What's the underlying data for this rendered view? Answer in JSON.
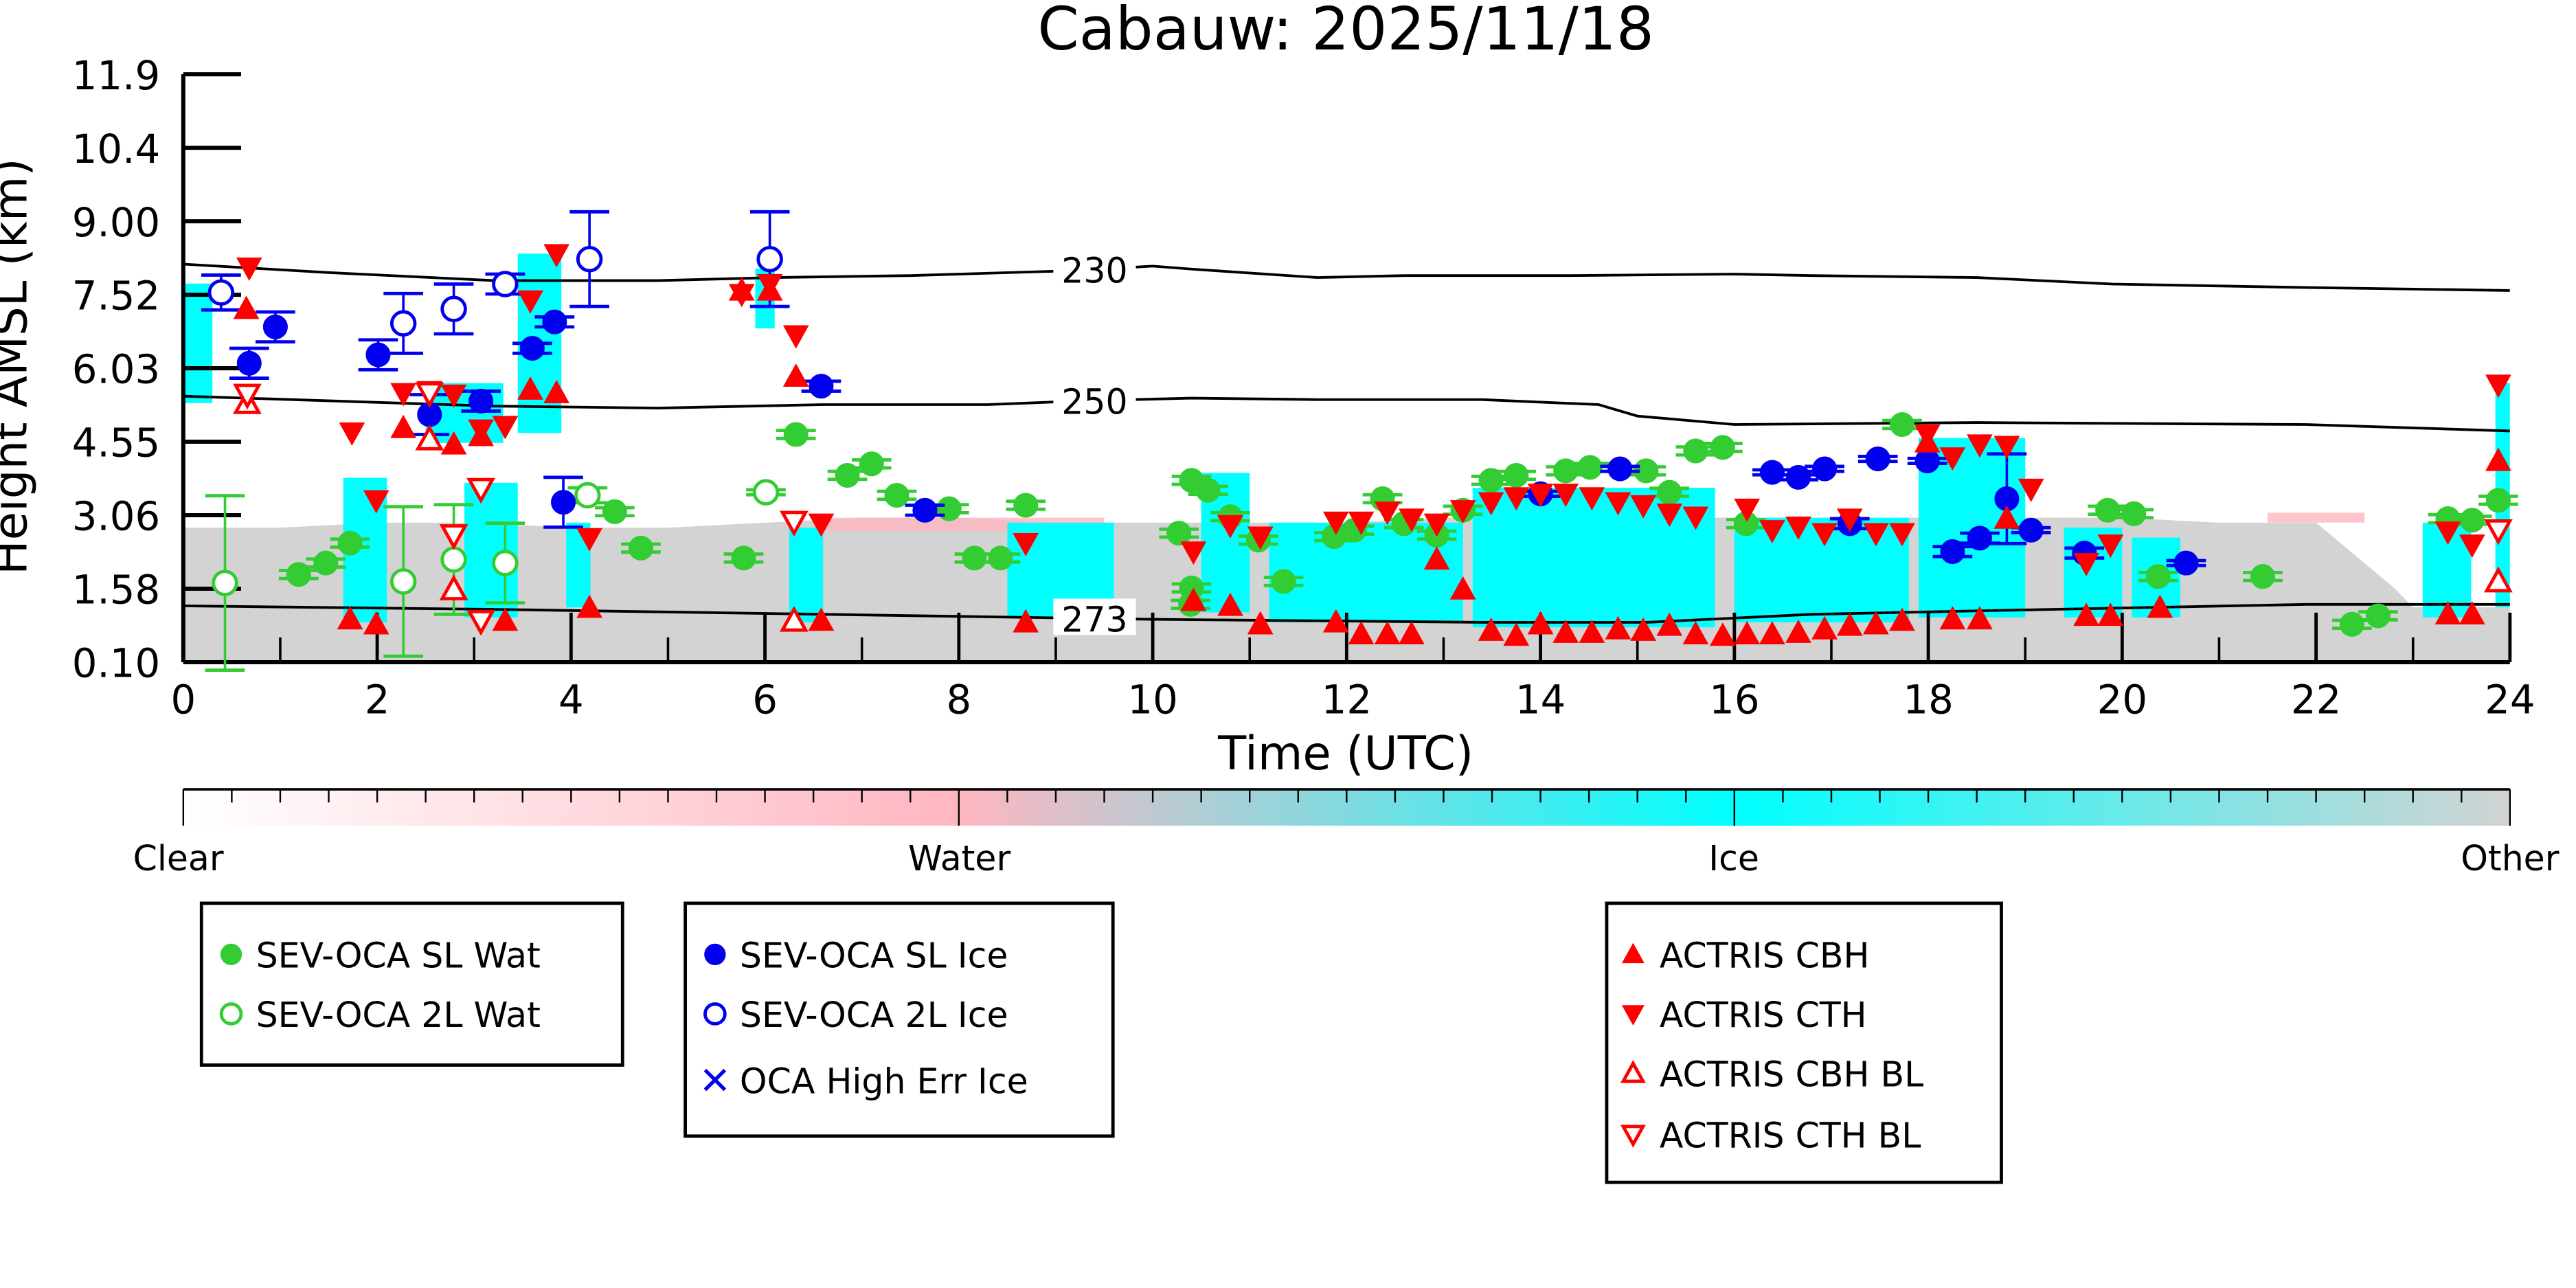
{
  "chart_data": {
    "type": "scatter",
    "title": "Cabauw: 2025/11/18",
    "xlabel": "Time (UTC)",
    "ylabel": "Height AMSL (km)",
    "xlim": [
      0,
      24
    ],
    "ylim": [
      0.1,
      11.9
    ],
    "xticks": [
      "0",
      "2",
      "4",
      "6",
      "8",
      "10",
      "12",
      "14",
      "16",
      "18",
      "20",
      "22",
      "24"
    ],
    "yticks": [
      "0.10",
      "1.58",
      "3.06",
      "4.55",
      "6.03",
      "7.52",
      "9.00",
      "10.4",
      "11.9"
    ],
    "colorbar": {
      "labels": [
        "Clear",
        "Water",
        "Ice",
        "Other"
      ],
      "colors": [
        "#ffffff",
        "#ffb6c1",
        "#00ffff",
        "#d3d3d3"
      ]
    },
    "contours": [
      {
        "label": "230",
        "x": [
          0,
          1.5,
          3.2,
          4.9,
          6.1,
          7.5,
          9.2,
          10.0,
          10.4,
          11.7,
          12.6,
          14.3,
          16.0,
          16.8,
          18.5,
          19.9,
          21.9,
          24
        ],
        "y": [
          8.09,
          7.92,
          7.76,
          7.76,
          7.82,
          7.86,
          7.96,
          8.05,
          7.99,
          7.82,
          7.86,
          7.86,
          7.89,
          7.86,
          7.82,
          7.69,
          7.62,
          7.56
        ]
      },
      {
        "label": "250",
        "x": [
          0,
          3.2,
          4.9,
          6.6,
          8.3,
          9.2,
          10.4,
          11.7,
          13.4,
          14.6,
          15.0,
          16.0,
          18.5,
          21.9,
          24
        ],
        "y": [
          5.44,
          5.24,
          5.2,
          5.27,
          5.27,
          5.34,
          5.4,
          5.37,
          5.37,
          5.27,
          5.04,
          4.87,
          4.91,
          4.87,
          4.74
        ]
      },
      {
        "label": "273",
        "x": [
          0,
          3.2,
          6.6,
          10.0,
          13.4,
          15.1,
          16.8,
          18.5,
          21.9,
          24
        ],
        "y": [
          1.23,
          1.16,
          1.06,
          0.96,
          0.9,
          0.9,
          1.06,
          1.13,
          1.26,
          1.26
        ]
      }
    ],
    "series": [
      {
        "name": "SEV-OCA SL Wat",
        "marker": "circle",
        "filled": true,
        "color": "#33cc33",
        "x": [
          1.19,
          1.47,
          1.72,
          4.45,
          4.72,
          5.78,
          6.32,
          6.85,
          7.1,
          7.36,
          7.9,
          8.16,
          8.43,
          8.69,
          10.27,
          10.4,
          10.57,
          10.39,
          10.4,
          10.8,
          11.09,
          11.35,
          11.87,
          12.08,
          12.37,
          12.59,
          12.93,
          13.2,
          13.49,
          13.75,
          14.26,
          14.51,
          15.09,
          15.33,
          15.6,
          15.88,
          16.12,
          17.73,
          19.85,
          20.12,
          20.37,
          21.45,
          22.37,
          22.64,
          23.36,
          23.61,
          23.88
        ],
        "y": [
          1.86,
          2.09,
          2.49,
          3.12,
          2.39,
          2.19,
          4.67,
          3.85,
          4.08,
          3.45,
          3.18,
          2.19,
          2.19,
          3.25,
          2.69,
          3.75,
          3.55,
          1.26,
          1.59,
          3.02,
          2.55,
          1.72,
          2.62,
          2.75,
          3.38,
          2.88,
          2.65,
          3.15,
          3.75,
          3.85,
          3.94,
          4.01,
          3.94,
          3.51,
          4.34,
          4.41,
          2.88,
          4.87,
          3.15,
          3.08,
          1.82,
          1.82,
          0.86,
          1.03,
          2.98,
          2.95,
          3.35
        ]
      },
      {
        "name": "SEV-OCA 2L Wat",
        "marker": "circle",
        "filled": false,
        "color": "#33cc33",
        "x": [
          0.43,
          2.27,
          2.79,
          3.32,
          4.17,
          6.01
        ],
        "y": [
          1.69,
          1.72,
          2.16,
          2.09,
          3.45,
          3.51
        ],
        "yerr": [
          1.75,
          1.5,
          1.1,
          0.8,
          0.15,
          0.05
        ]
      },
      {
        "name": "SEV-OCA SL Ice",
        "marker": "circle",
        "filled": true,
        "color": "#0000ee",
        "x": [
          0.68,
          0.95,
          2.01,
          2.54,
          3.07,
          3.6,
          3.83,
          3.92,
          6.58,
          7.65,
          14.0,
          14.82,
          16.39,
          16.66,
          16.93,
          17.19,
          17.48,
          17.99,
          18.25,
          18.53,
          18.81,
          19.06,
          19.61,
          20.66
        ],
        "y": [
          6.1,
          6.83,
          6.27,
          5.07,
          5.34,
          6.4,
          6.93,
          3.31,
          5.64,
          3.15,
          3.48,
          3.98,
          3.91,
          3.81,
          3.98,
          2.88,
          4.18,
          4.14,
          2.32,
          2.59,
          3.38,
          2.75,
          2.29,
          2.09
        ],
        "yerr": [
          0.3,
          0.3,
          0.3,
          0.4,
          0.2,
          0.1,
          0.1,
          0.5,
          0.1,
          0.1,
          0.05,
          0.05,
          0.05,
          0.05,
          0.05,
          0.1,
          0.05,
          0.05,
          0.1,
          0.1,
          0.9,
          0.05,
          0.1,
          0.05
        ]
      },
      {
        "name": "SEV-OCA 2L Ice",
        "marker": "circle",
        "filled": false,
        "color": "#0000ee",
        "x": [
          0.39,
          2.27,
          2.79,
          3.32,
          4.19,
          6.05
        ],
        "y": [
          7.52,
          6.9,
          7.19,
          7.69,
          8.19,
          8.19
        ],
        "yerr": [
          0.35,
          0.6,
          0.5,
          0.2,
          0.95,
          0.95
        ]
      },
      {
        "name": "OCA High Err Ice",
        "marker": "x",
        "filled": false,
        "color": "#0000ee",
        "x": [],
        "y": []
      },
      {
        "name": "ACTRIS CBH",
        "marker": "triangle-up",
        "filled": true,
        "color": "#ff0000",
        "x": [
          0.65,
          1.72,
          1.99,
          2.27,
          2.79,
          3.07,
          3.32,
          3.58,
          3.85,
          4.19,
          5.76,
          6.05,
          6.32,
          6.58,
          8.69,
          10.42,
          10.8,
          11.11,
          11.89,
          12.15,
          12.42,
          12.67,
          12.93,
          13.2,
          13.49,
          13.75,
          14.0,
          14.26,
          14.53,
          14.8,
          15.06,
          15.33,
          15.6,
          15.88,
          16.13,
          16.39,
          16.66,
          16.93,
          17.19,
          17.46,
          17.73,
          17.99,
          18.25,
          18.53,
          18.81,
          19.63,
          19.88,
          20.39,
          23.36,
          23.61,
          23.88
        ],
        "y": [
          7.19,
          0.96,
          0.86,
          4.8,
          4.47,
          4.64,
          0.93,
          5.57,
          5.5,
          1.19,
          7.56,
          7.56,
          5.83,
          0.93,
          0.9,
          1.33,
          1.23,
          0.86,
          0.9,
          0.66,
          0.66,
          0.66,
          2.16,
          1.56,
          0.73,
          0.63,
          0.86,
          0.69,
          0.69,
          0.76,
          0.73,
          0.83,
          0.66,
          0.63,
          0.66,
          0.66,
          0.69,
          0.76,
          0.83,
          0.86,
          0.93,
          4.51,
          0.96,
          0.96,
          2.98,
          1.03,
          1.03,
          1.19,
          1.06,
          1.06,
          4.14
        ]
      },
      {
        "name": "ACTRIS CTH",
        "marker": "triangle-down",
        "filled": true,
        "color": "#ff0000",
        "x": [
          0.68,
          1.74,
          1.99,
          2.27,
          2.54,
          2.79,
          3.07,
          3.32,
          3.58,
          3.85,
          4.19,
          5.76,
          6.05,
          6.32,
          6.58,
          8.69,
          10.42,
          10.8,
          11.11,
          11.89,
          12.15,
          12.42,
          12.67,
          12.93,
          13.2,
          13.49,
          13.75,
          14.0,
          14.26,
          14.53,
          14.8,
          15.06,
          15.33,
          15.6,
          16.13,
          16.39,
          16.66,
          16.93,
          17.19,
          17.46,
          17.73,
          17.99,
          18.25,
          18.53,
          18.81,
          19.06,
          19.63,
          19.88,
          23.36,
          23.61,
          23.88
        ],
        "y": [
          8.02,
          4.71,
          3.35,
          5.5,
          5.54,
          5.47,
          4.77,
          4.84,
          7.36,
          8.29,
          2.59,
          7.49,
          7.69,
          6.66,
          2.88,
          2.49,
          2.32,
          2.85,
          2.62,
          2.92,
          2.92,
          3.12,
          2.98,
          2.88,
          3.15,
          3.31,
          3.41,
          3.48,
          3.48,
          3.41,
          3.31,
          3.25,
          3.08,
          3.02,
          3.18,
          2.75,
          2.82,
          2.69,
          2.98,
          2.69,
          2.69,
          4.67,
          4.21,
          4.47,
          4.44,
          3.58,
          2.09,
          2.46,
          2.72,
          2.46,
          5.67
        ]
      },
      {
        "name": "ACTRIS CBH BL",
        "marker": "triangle-up",
        "filled": false,
        "color": "#ff0000",
        "x": [
          0.66,
          2.54,
          2.79,
          6.3,
          23.88
        ],
        "y": [
          5.3,
          4.57,
          1.56,
          0.93,
          1.72
        ]
      },
      {
        "name": "ACTRIS CTH BL",
        "marker": "triangle-down",
        "filled": false,
        "color": "#ff0000",
        "x": [
          0.66,
          2.54,
          2.79,
          3.07,
          3.07,
          6.3,
          23.88
        ],
        "y": [
          5.47,
          5.5,
          2.65,
          3.58,
          0.93,
          2.92,
          2.75
        ]
      }
    ],
    "cloud_mask": {
      "other": {
        "x": [
          0,
          1,
          2,
          3,
          4,
          5,
          6,
          7,
          8,
          9,
          10,
          11,
          12,
          13,
          14,
          15,
          16,
          17,
          18,
          19,
          20,
          21,
          22,
          22.8,
          23,
          24
        ],
        "top": [
          2.8,
          2.8,
          2.9,
          2.9,
          2.8,
          2.8,
          2.9,
          3.0,
          3.0,
          2.9,
          2.9,
          2.9,
          2.9,
          3.0,
          3.0,
          3.0,
          3.0,
          3.0,
          3.0,
          3.0,
          3.0,
          2.9,
          2.9,
          1.6,
          1.2,
          1.2
        ]
      },
      "ice": [
        [
          0,
          0.3,
          5.3,
          7.7
        ],
        [
          1.65,
          2.1,
          0.9,
          3.8
        ],
        [
          2.5,
          3.3,
          4.5,
          5.7
        ],
        [
          2.9,
          3.45,
          1.0,
          3.7
        ],
        [
          3.45,
          3.9,
          4.7,
          8.3
        ],
        [
          3.95,
          4.2,
          1.2,
          2.9
        ],
        [
          5.9,
          6.1,
          6.8,
          8.0
        ],
        [
          6.25,
          6.6,
          0.9,
          2.8
        ],
        [
          8.5,
          9.6,
          1.0,
          2.9
        ],
        [
          10.5,
          11.0,
          1.1,
          3.9
        ],
        [
          11.2,
          13.2,
          0.9,
          2.9
        ],
        [
          13.3,
          15.8,
          0.8,
          3.6
        ],
        [
          16.0,
          17.8,
          0.9,
          3.0
        ],
        [
          17.9,
          19.0,
          1.0,
          4.6
        ],
        [
          19.4,
          20.0,
          1.0,
          2.8
        ],
        [
          20.1,
          20.6,
          1.0,
          2.6
        ],
        [
          23.1,
          23.6,
          1.0,
          2.9
        ],
        [
          23.85,
          24,
          1.2,
          5.7
        ]
      ]
    }
  }
}
